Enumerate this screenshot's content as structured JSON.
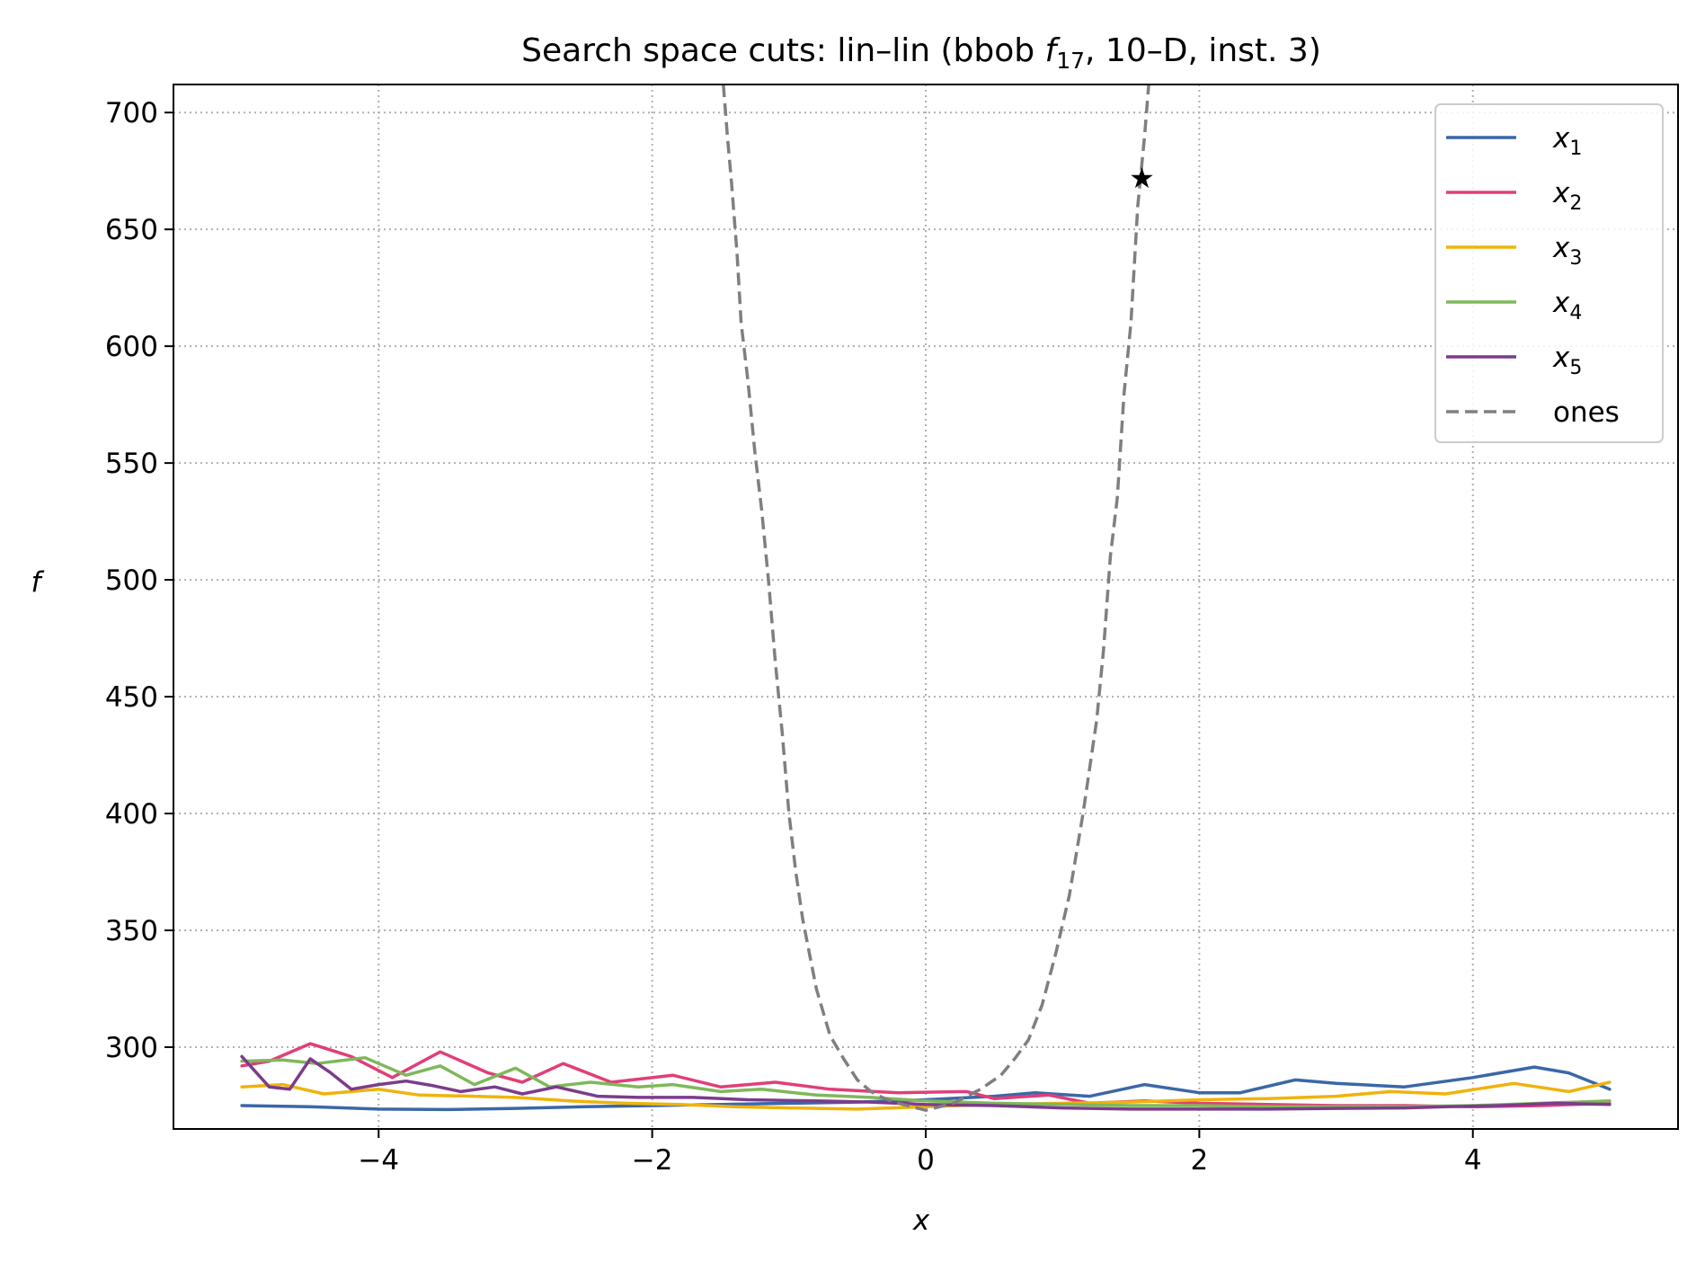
{
  "chart_data": {
    "type": "line",
    "title": "Search space cuts: lin–lin (bbob ",
    "title_math": "f",
    "title_sub": "17",
    "title_end": ", 10–D, inst. 3)",
    "xlabel": "x",
    "ylabel": "f",
    "xlim": [
      -5.5,
      5.5
    ],
    "ylim": [
      265,
      712
    ],
    "x_ticks": [
      -4,
      -2,
      0,
      2,
      4
    ],
    "x_tick_labels": [
      "−4",
      "−2",
      "0",
      "2",
      "4"
    ],
    "y_ticks": [
      300,
      350,
      400,
      450,
      500,
      550,
      600,
      650,
      700
    ],
    "y_tick_labels": [
      "300",
      "350",
      "400",
      "450",
      "500",
      "550",
      "600",
      "650",
      "700"
    ],
    "grid": true,
    "legend_position": "top-right",
    "series": [
      {
        "name": "x",
        "sub": "1",
        "color": "#3a67a8",
        "style": "solid",
        "points": [
          [
            -5,
            275
          ],
          [
            -4.5,
            274.5
          ],
          [
            -4,
            273.5
          ],
          [
            -3.5,
            273.3
          ],
          [
            -3,
            273.8
          ],
          [
            -2.5,
            274.5
          ],
          [
            -2,
            275
          ],
          [
            -1.5,
            275.5
          ],
          [
            -1,
            276
          ],
          [
            -0.5,
            276.5
          ],
          [
            0,
            277.5
          ],
          [
            0.5,
            279
          ],
          [
            0.8,
            280.5
          ],
          [
            1.2,
            279
          ],
          [
            1.6,
            284
          ],
          [
            2,
            280.5
          ],
          [
            2.3,
            280.5
          ],
          [
            2.7,
            286
          ],
          [
            3,
            284.5
          ],
          [
            3.5,
            283
          ],
          [
            4,
            287
          ],
          [
            4.45,
            291.5
          ],
          [
            4.7,
            289
          ],
          [
            5,
            282
          ]
        ]
      },
      {
        "name": "x",
        "sub": "2",
        "color": "#e03f78",
        "style": "solid",
        "points": [
          [
            -5,
            292
          ],
          [
            -4.8,
            294
          ],
          [
            -4.5,
            301.5
          ],
          [
            -4.2,
            296
          ],
          [
            -3.9,
            287
          ],
          [
            -3.55,
            298
          ],
          [
            -3.2,
            289
          ],
          [
            -2.95,
            285
          ],
          [
            -2.65,
            293
          ],
          [
            -2.3,
            285
          ],
          [
            -1.85,
            288
          ],
          [
            -1.5,
            283
          ],
          [
            -1.1,
            285
          ],
          [
            -0.7,
            282
          ],
          [
            -0.2,
            280.5
          ],
          [
            0.3,
            281
          ],
          [
            0.5,
            278
          ],
          [
            0.9,
            279.5
          ],
          [
            1.2,
            276
          ],
          [
            1.6,
            277
          ],
          [
            2,
            276
          ],
          [
            2.5,
            275.5
          ],
          [
            3,
            275
          ],
          [
            3.5,
            275
          ],
          [
            4,
            274.5
          ],
          [
            4.5,
            275
          ],
          [
            5,
            276
          ]
        ]
      },
      {
        "name": "x",
        "sub": "3",
        "color": "#f0b30c",
        "style": "solid",
        "points": [
          [
            -5,
            283
          ],
          [
            -4.7,
            284
          ],
          [
            -4.4,
            280
          ],
          [
            -4,
            282
          ],
          [
            -3.7,
            279.5
          ],
          [
            -3.3,
            279
          ],
          [
            -3,
            278.5
          ],
          [
            -2.6,
            277
          ],
          [
            -2.2,
            276
          ],
          [
            -1.8,
            275.5
          ],
          [
            -1.4,
            274.5
          ],
          [
            -1,
            274
          ],
          [
            -0.5,
            273.5
          ],
          [
            0,
            274.5
          ],
          [
            0.5,
            275.5
          ],
          [
            1,
            276
          ],
          [
            1.5,
            276.5
          ],
          [
            2,
            277.5
          ],
          [
            2.5,
            278
          ],
          [
            3,
            279
          ],
          [
            3.4,
            281
          ],
          [
            3.8,
            280
          ],
          [
            4.3,
            284.5
          ],
          [
            4.7,
            281
          ],
          [
            5,
            285
          ]
        ]
      },
      {
        "name": "x",
        "sub": "4",
        "color": "#7eb85a",
        "style": "solid",
        "points": [
          [
            -5,
            294
          ],
          [
            -4.7,
            294.5
          ],
          [
            -4.45,
            293
          ],
          [
            -4.1,
            295.5
          ],
          [
            -3.8,
            288
          ],
          [
            -3.55,
            292
          ],
          [
            -3.3,
            284
          ],
          [
            -3,
            291
          ],
          [
            -2.75,
            283
          ],
          [
            -2.45,
            285
          ],
          [
            -2.1,
            283
          ],
          [
            -1.85,
            284
          ],
          [
            -1.5,
            281
          ],
          [
            -1.2,
            282
          ],
          [
            -0.8,
            279.5
          ],
          [
            -0.4,
            278.5
          ],
          [
            0,
            277
          ],
          [
            0.5,
            276
          ],
          [
            1,
            275.5
          ],
          [
            1.5,
            275
          ],
          [
            2,
            275
          ],
          [
            2.5,
            274.5
          ],
          [
            3,
            274.5
          ],
          [
            3.5,
            274.5
          ],
          [
            4,
            275
          ],
          [
            4.5,
            276
          ],
          [
            5,
            277
          ]
        ]
      },
      {
        "name": "x",
        "sub": "5",
        "color": "#7b3c8c",
        "style": "solid",
        "points": [
          [
            -5,
            296
          ],
          [
            -4.8,
            283
          ],
          [
            -4.65,
            282
          ],
          [
            -4.5,
            295
          ],
          [
            -4.35,
            289
          ],
          [
            -4.2,
            282
          ],
          [
            -4,
            284
          ],
          [
            -3.8,
            285.5
          ],
          [
            -3.6,
            283.5
          ],
          [
            -3.4,
            281
          ],
          [
            -3.15,
            283
          ],
          [
            -2.95,
            280
          ],
          [
            -2.7,
            283
          ],
          [
            -2.4,
            279
          ],
          [
            -2.1,
            278.5
          ],
          [
            -1.7,
            278.5
          ],
          [
            -1.3,
            277.5
          ],
          [
            -0.8,
            277
          ],
          [
            -0.4,
            276.5
          ],
          [
            0,
            275.5
          ],
          [
            0.5,
            275
          ],
          [
            1,
            274
          ],
          [
            1.5,
            273.5
          ],
          [
            2,
            273.5
          ],
          [
            2.5,
            273.5
          ],
          [
            3,
            273.8
          ],
          [
            3.5,
            274
          ],
          [
            3.8,
            274.5
          ],
          [
            4.2,
            275
          ],
          [
            4.6,
            276
          ],
          [
            5,
            275.5
          ]
        ]
      },
      {
        "name": "ones",
        "color": "#7f7f7f",
        "style": "dashed",
        "points": [
          [
            -1.48,
            712
          ],
          [
            -1.45,
            690
          ],
          [
            -1.42,
            670
          ],
          [
            -1.38,
            640
          ],
          [
            -1.35,
            610
          ],
          [
            -1.3,
            585
          ],
          [
            -1.25,
            555
          ],
          [
            -1.2,
            530
          ],
          [
            -1.15,
            500
          ],
          [
            -1.1,
            465
          ],
          [
            -1.05,
            435
          ],
          [
            -1.0,
            400
          ],
          [
            -0.95,
            375
          ],
          [
            -0.9,
            355
          ],
          [
            -0.85,
            340
          ],
          [
            -0.8,
            325
          ],
          [
            -0.75,
            315
          ],
          [
            -0.7,
            305
          ],
          [
            -0.6,
            295
          ],
          [
            -0.5,
            286
          ],
          [
            -0.4,
            281
          ],
          [
            -0.3,
            278
          ],
          [
            -0.2,
            276
          ],
          [
            0,
            273
          ],
          [
            0.2,
            276
          ],
          [
            0.3,
            279
          ],
          [
            0.4,
            282
          ],
          [
            0.55,
            288
          ],
          [
            0.65,
            295
          ],
          [
            0.75,
            303
          ],
          [
            0.85,
            318
          ],
          [
            0.95,
            340
          ],
          [
            1.05,
            365
          ],
          [
            1.15,
            400
          ],
          [
            1.25,
            440
          ],
          [
            1.3,
            470
          ],
          [
            1.35,
            510
          ],
          [
            1.4,
            535
          ],
          [
            1.45,
            580
          ],
          [
            1.5,
            610
          ],
          [
            1.55,
            660
          ],
          [
            1.6,
            690
          ],
          [
            1.63,
            712
          ]
        ]
      }
    ],
    "markers": [
      {
        "x": 1.58,
        "y": 672,
        "symbol": "★",
        "color": "#7f7f7f"
      }
    ]
  }
}
